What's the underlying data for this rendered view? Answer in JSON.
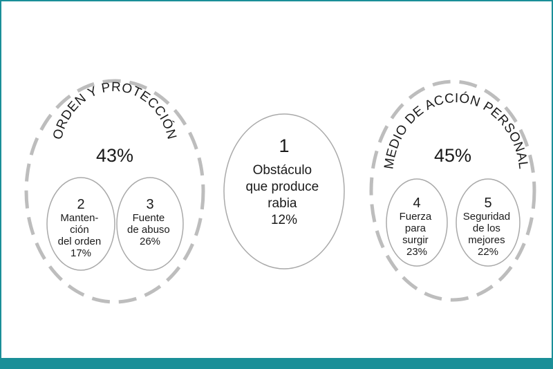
{
  "colors": {
    "frame": "#1a8f98",
    "dashes": "#bdbdbd",
    "ellipse_stroke": "#a9a9a9",
    "text": "#1a1a1a"
  },
  "left_group": {
    "title": "ORDEN Y PROTECCIÓN",
    "percent": "43%",
    "items": [
      {
        "number": "2",
        "lines": [
          "Manten-",
          "ción",
          "del orden",
          "17%"
        ]
      },
      {
        "number": "3",
        "lines": [
          "Fuente",
          "de abuso",
          "26%"
        ]
      }
    ]
  },
  "center": {
    "number": "1",
    "lines": [
      "Obstáculo",
      "que produce",
      "rabia",
      "12%"
    ]
  },
  "right_group": {
    "title": "MEDIO DE ACCIÓN PERSONAL",
    "percent": "45%",
    "items": [
      {
        "number": "4",
        "lines": [
          "Fuerza",
          "para",
          "surgir",
          "23%"
        ]
      },
      {
        "number": "5",
        "lines": [
          "Seguridad",
          "de los",
          "mejores",
          "22%"
        ]
      }
    ]
  }
}
